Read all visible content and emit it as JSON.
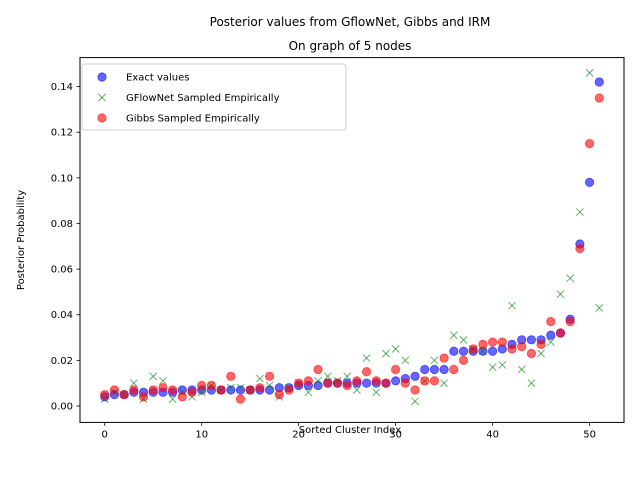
{
  "chart_data": {
    "type": "scatter",
    "title": "Posterior values from GflowNet, Gibbs and IRM",
    "subtitle": "On graph of 5 nodes",
    "xlabel": "Sorted Cluster Index",
    "ylabel": "Posterior Probability",
    "xlim": [
      -2.55,
      53.55
    ],
    "ylim": [
      -0.0072,
      0.1527
    ],
    "xticks": [
      0,
      10,
      20,
      30,
      40,
      50
    ],
    "yticks": [
      0.0,
      0.02,
      0.04,
      0.06,
      0.08,
      0.1,
      0.12,
      0.14
    ],
    "ytick_labels": [
      "0.00",
      "0.02",
      "0.04",
      "0.06",
      "0.08",
      "0.10",
      "0.12",
      "0.14"
    ],
    "grid": false,
    "legend_position": "upper-left",
    "series": [
      {
        "name": "Exact values",
        "marker": "circle",
        "color": "#0000ff",
        "x": [
          0,
          1,
          2,
          3,
          4,
          5,
          6,
          7,
          8,
          9,
          10,
          11,
          12,
          13,
          14,
          15,
          16,
          17,
          18,
          19,
          20,
          21,
          22,
          23,
          24,
          25,
          26,
          27,
          28,
          29,
          30,
          31,
          32,
          33,
          34,
          35,
          36,
          37,
          38,
          39,
          40,
          41,
          42,
          43,
          44,
          45,
          46,
          47,
          48,
          49,
          50,
          51
        ],
        "y": [
          0.004,
          0.005,
          0.005,
          0.006,
          0.006,
          0.006,
          0.006,
          0.006,
          0.007,
          0.007,
          0.007,
          0.007,
          0.007,
          0.007,
          0.007,
          0.007,
          0.007,
          0.007,
          0.008,
          0.008,
          0.009,
          0.009,
          0.009,
          0.01,
          0.01,
          0.01,
          0.01,
          0.01,
          0.01,
          0.01,
          0.011,
          0.012,
          0.013,
          0.016,
          0.016,
          0.016,
          0.024,
          0.024,
          0.024,
          0.024,
          0.024,
          0.025,
          0.027,
          0.029,
          0.029,
          0.029,
          0.031,
          0.032,
          0.038,
          0.071,
          0.098,
          0.142
        ]
      },
      {
        "name": "GFlowNet Sampled Empirically",
        "marker": "x",
        "color": "#008000",
        "x": [
          0,
          1,
          2,
          3,
          4,
          5,
          6,
          7,
          8,
          9,
          10,
          11,
          12,
          13,
          14,
          15,
          16,
          17,
          18,
          19,
          20,
          21,
          22,
          23,
          24,
          25,
          26,
          27,
          28,
          29,
          30,
          31,
          32,
          33,
          34,
          35,
          36,
          37,
          38,
          39,
          40,
          41,
          42,
          43,
          44,
          45,
          46,
          47,
          48,
          49,
          50,
          51
        ],
        "y": [
          0.003,
          0.006,
          0.005,
          0.01,
          0.003,
          0.013,
          0.011,
          0.003,
          0.006,
          0.004,
          0.006,
          0.009,
          0.007,
          0.008,
          0.008,
          0.007,
          0.012,
          0.009,
          0.004,
          0.008,
          0.01,
          0.006,
          0.011,
          0.013,
          0.011,
          0.013,
          0.007,
          0.021,
          0.006,
          0.023,
          0.025,
          0.02,
          0.002,
          0.011,
          0.02,
          0.01,
          0.031,
          0.029,
          0.025,
          0.024,
          0.017,
          0.018,
          0.044,
          0.016,
          0.01,
          0.023,
          0.028,
          0.049,
          0.056,
          0.085,
          0.146,
          0.043
        ]
      },
      {
        "name": "Gibbs Sampled Empirically",
        "marker": "circle",
        "color": "#ff0000",
        "x": [
          0,
          1,
          2,
          3,
          4,
          5,
          6,
          7,
          8,
          9,
          10,
          11,
          12,
          13,
          14,
          15,
          16,
          17,
          18,
          19,
          20,
          21,
          22,
          23,
          24,
          25,
          26,
          27,
          28,
          29,
          30,
          31,
          32,
          33,
          34,
          35,
          36,
          37,
          38,
          39,
          40,
          41,
          42,
          43,
          44,
          45,
          46,
          47,
          48,
          49,
          50,
          51
        ],
        "y": [
          0.005,
          0.007,
          0.005,
          0.007,
          0.004,
          0.007,
          0.008,
          0.007,
          0.004,
          0.006,
          0.009,
          0.009,
          0.007,
          0.013,
          0.003,
          0.007,
          0.008,
          0.013,
          0.005,
          0.007,
          0.01,
          0.011,
          0.016,
          0.01,
          0.01,
          0.009,
          0.011,
          0.015,
          0.011,
          0.01,
          0.016,
          0.01,
          0.007,
          0.011,
          0.011,
          0.021,
          0.016,
          0.02,
          0.025,
          0.027,
          0.028,
          0.028,
          0.025,
          0.026,
          0.023,
          0.027,
          0.037,
          0.032,
          0.037,
          0.069,
          0.115,
          0.135
        ]
      }
    ]
  }
}
